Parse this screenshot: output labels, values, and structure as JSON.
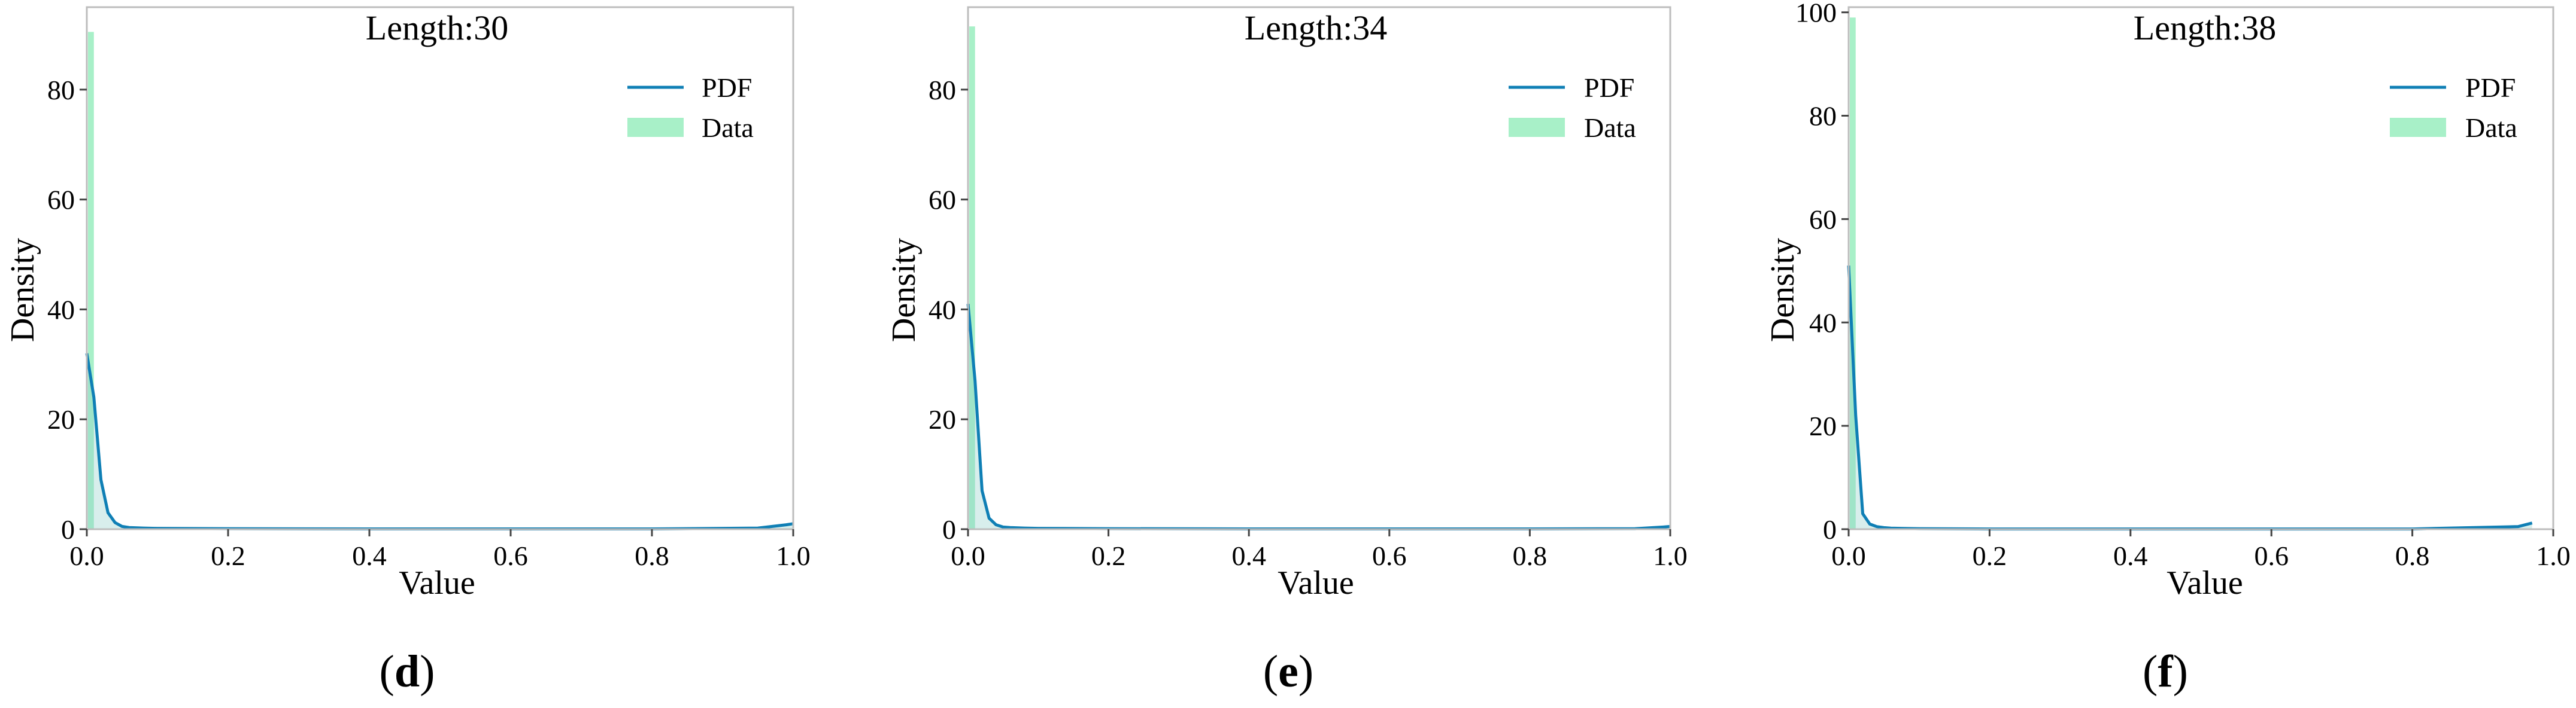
{
  "colors": {
    "pdf_line": "#0F7FB5",
    "hist_fill": "#A8F0C8",
    "kde_fill": "#8ECFC9",
    "frame": "#BDBDBD",
    "text": "#000000"
  },
  "legend": {
    "pdf": "PDF",
    "data": "Data"
  },
  "chart_data": [
    {
      "type": "histogram+line",
      "title": "Length:30",
      "panel": "d",
      "xlabel": "Value",
      "ylabel": "Density",
      "xlim": [
        0.0,
        1.0
      ],
      "ylim": [
        0,
        95
      ],
      "xticks": [
        "0.0",
        "0.2",
        "0.4",
        "0.6",
        "0.8",
        "1.0"
      ],
      "yticks": [
        "0",
        "20",
        "40",
        "60",
        "80"
      ],
      "histogram": {
        "bin_width": 0.01,
        "bins": [
          {
            "x0": 0.0,
            "x1": 0.01,
            "value": 90.5
          }
        ]
      },
      "pdf": {
        "x": [
          0.0,
          0.01,
          0.02,
          0.03,
          0.04,
          0.05,
          0.06,
          0.08,
          0.1,
          0.2,
          0.4,
          0.6,
          0.8,
          0.95,
          0.99,
          1.0
        ],
        "y": [
          32,
          24,
          9,
          3,
          1.2,
          0.5,
          0.3,
          0.2,
          0.15,
          0.1,
          0.05,
          0.05,
          0.05,
          0.2,
          0.8,
          1.0
        ]
      },
      "legend_position": "top-right"
    },
    {
      "type": "histogram+line",
      "title": "Length:34",
      "panel": "e",
      "xlabel": "Value",
      "ylabel": "Density",
      "xlim": [
        0.0,
        1.0
      ],
      "ylim": [
        0,
        95
      ],
      "xticks": [
        "0.0",
        "0.2",
        "0.4",
        "0.6",
        "0.8",
        "1.0"
      ],
      "yticks": [
        "0",
        "20",
        "40",
        "60",
        "80"
      ],
      "histogram": {
        "bin_width": 0.01,
        "bins": [
          {
            "x0": 0.0,
            "x1": 0.01,
            "value": 91.5
          }
        ]
      },
      "pdf": {
        "x": [
          0.0,
          0.01,
          0.02,
          0.03,
          0.04,
          0.05,
          0.06,
          0.08,
          0.1,
          0.2,
          0.4,
          0.6,
          0.8,
          0.95,
          0.99,
          1.0
        ],
        "y": [
          41,
          27,
          7,
          2,
          0.8,
          0.4,
          0.3,
          0.2,
          0.15,
          0.1,
          0.05,
          0.05,
          0.05,
          0.1,
          0.4,
          0.5
        ]
      },
      "legend_position": "top-right"
    },
    {
      "type": "histogram+line",
      "title": "Length:38",
      "panel": "f",
      "xlabel": "Value",
      "ylabel": "Density",
      "xlim": [
        0.0,
        1.0
      ],
      "ylim": [
        0,
        101
      ],
      "xticks": [
        "0.0",
        "0.2",
        "0.4",
        "0.6",
        "0.8",
        "1.0"
      ],
      "yticks": [
        "0",
        "20",
        "40",
        "60",
        "80",
        "100"
      ],
      "histogram": {
        "bin_width": 0.01,
        "bins": [
          {
            "x0": 0.0,
            "x1": 0.01,
            "value": 99
          }
        ]
      },
      "pdf": {
        "x": [
          0.0,
          0.01,
          0.02,
          0.03,
          0.04,
          0.05,
          0.06,
          0.08,
          0.1,
          0.2,
          0.4,
          0.6,
          0.8,
          0.95,
          0.97
        ],
        "y": [
          51,
          22,
          3,
          1,
          0.5,
          0.3,
          0.2,
          0.15,
          0.1,
          0.05,
          0.05,
          0.05,
          0.05,
          0.5,
          1.2
        ]
      },
      "legend_position": "top-right"
    }
  ]
}
